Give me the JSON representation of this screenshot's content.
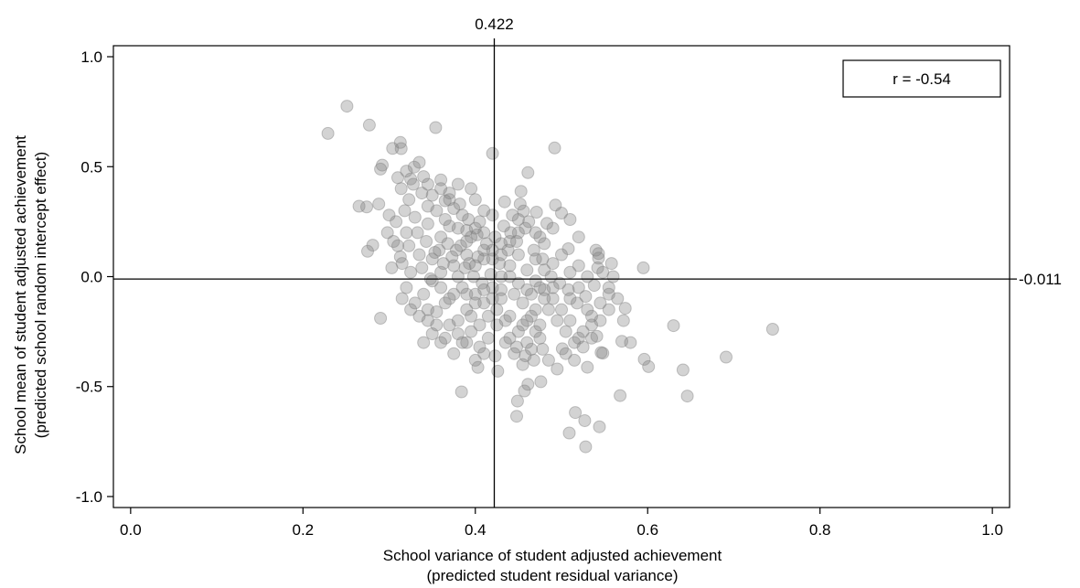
{
  "chart_data": {
    "type": "scatter",
    "title": "",
    "xlabel": [
      "School variance of student adjusted achievement",
      "(predicted student residual variance)"
    ],
    "ylabel": [
      "School mean of student adjusted achievement",
      "(predicted school random intercept effect)"
    ],
    "xlim": [
      -0.02,
      1.02
    ],
    "ylim": [
      -1.05,
      1.05
    ],
    "xticks": [
      "0.0",
      "0.2",
      "0.4",
      "0.6",
      "0.8",
      "1.0"
    ],
    "yticks": [
      "1.0",
      "0.5",
      "0.0",
      "-0.5",
      "-1.0"
    ],
    "grid": false,
    "reference_lines": {
      "x_value": 0.422,
      "x_label": "0.422",
      "y_value": -0.011,
      "y_label": "-0.011"
    },
    "legend": {
      "text": "r = -0.54",
      "position": "top-right"
    },
    "point_color": "#808080",
    "points": [
      [
        0.251,
        0.775
      ],
      [
        0.229,
        0.651
      ],
      [
        0.277,
        0.689
      ],
      [
        0.354,
        0.678
      ],
      [
        0.313,
        0.61
      ],
      [
        0.314,
        0.582
      ],
      [
        0.304,
        0.583
      ],
      [
        0.42,
        0.56
      ],
      [
        0.492,
        0.585
      ],
      [
        0.292,
        0.507
      ],
      [
        0.29,
        0.489
      ],
      [
        0.461,
        0.473
      ],
      [
        0.329,
        0.498
      ],
      [
        0.325,
        0.444
      ],
      [
        0.34,
        0.455
      ],
      [
        0.274,
        0.317
      ],
      [
        0.265,
        0.32
      ],
      [
        0.281,
        0.143
      ],
      [
        0.275,
        0.115
      ],
      [
        0.29,
        -0.189
      ],
      [
        0.745,
        -0.239
      ],
      [
        0.691,
        -0.366
      ],
      [
        0.63,
        -0.223
      ],
      [
        0.641,
        -0.424
      ],
      [
        0.646,
        -0.543
      ],
      [
        0.601,
        -0.409
      ],
      [
        0.596,
        -0.376
      ],
      [
        0.595,
        0.04
      ],
      [
        0.574,
        -0.144
      ],
      [
        0.57,
        -0.294
      ],
      [
        0.568,
        -0.541
      ],
      [
        0.544,
        -0.683
      ],
      [
        0.528,
        -0.774
      ],
      [
        0.516,
        -0.618
      ],
      [
        0.509,
        -0.711
      ],
      [
        0.527,
        -0.655
      ],
      [
        0.448,
        -0.635
      ],
      [
        0.449,
        -0.566
      ],
      [
        0.426,
        -0.43
      ],
      [
        0.384,
        -0.524
      ],
      [
        0.543,
        0.105
      ],
      [
        0.543,
        0.084
      ],
      [
        0.542,
        0.04
      ],
      [
        0.508,
        0.127
      ],
      [
        0.456,
        0.298
      ],
      [
        0.453,
        0.388
      ],
      [
        0.493,
        0.325
      ],
      [
        0.5,
        0.289
      ],
      [
        0.483,
        0.242
      ],
      [
        0.471,
        0.293
      ],
      [
        0.546,
        -0.345
      ],
      [
        0.541,
        -0.271
      ],
      [
        0.548,
        -0.348
      ],
      [
        0.53,
        -0.412
      ],
      [
        0.501,
        -0.328
      ],
      [
        0.476,
        -0.478
      ],
      [
        0.457,
        -0.52
      ],
      [
        0.461,
        -0.49
      ],
      [
        0.423,
        -0.361
      ],
      [
        0.403,
        -0.413
      ],
      [
        0.314,
        0.4
      ],
      [
        0.323,
        0.35
      ],
      [
        0.35,
        0.37
      ],
      [
        0.365,
        0.345
      ],
      [
        0.38,
        0.42
      ],
      [
        0.4,
        0.35
      ],
      [
        0.395,
        0.4
      ],
      [
        0.41,
        0.3
      ],
      [
        0.42,
        0.28
      ],
      [
        0.434,
        0.34
      ],
      [
        0.441,
        0.2
      ],
      [
        0.45,
        0.26
      ],
      [
        0.47,
        0.2
      ],
      [
        0.48,
        0.15
      ],
      [
        0.43,
        0.15
      ],
      [
        0.39,
        0.21
      ],
      [
        0.37,
        0.23
      ],
      [
        0.36,
        0.18
      ],
      [
        0.345,
        0.24
      ],
      [
        0.33,
        0.27
      ],
      [
        0.32,
        0.2
      ],
      [
        0.31,
        0.14
      ],
      [
        0.335,
        0.1
      ],
      [
        0.35,
        0.08
      ],
      [
        0.36,
        0.02
      ],
      [
        0.375,
        0.05
      ],
      [
        0.39,
        0.1
      ],
      [
        0.4,
        0.05
      ],
      [
        0.41,
        0.12
      ],
      [
        0.42,
        0.08
      ],
      [
        0.43,
        0.0
      ],
      [
        0.44,
        0.05
      ],
      [
        0.45,
        0.1
      ],
      [
        0.46,
        0.03
      ],
      [
        0.47,
        0.08
      ],
      [
        0.48,
        0.03
      ],
      [
        0.49,
        0.06
      ],
      [
        0.5,
        0.1
      ],
      [
        0.51,
        0.02
      ],
      [
        0.52,
        0.05
      ],
      [
        0.53,
        0.0
      ],
      [
        0.52,
        -0.05
      ],
      [
        0.51,
        -0.1
      ],
      [
        0.5,
        -0.15
      ],
      [
        0.49,
        -0.05
      ],
      [
        0.48,
        -0.1
      ],
      [
        0.47,
        -0.15
      ],
      [
        0.46,
        -0.2
      ],
      [
        0.45,
        -0.25
      ],
      [
        0.44,
        -0.18
      ],
      [
        0.43,
        -0.1
      ],
      [
        0.42,
        -0.05
      ],
      [
        0.41,
        -0.12
      ],
      [
        0.4,
        -0.08
      ],
      [
        0.39,
        -0.15
      ],
      [
        0.38,
        -0.2
      ],
      [
        0.37,
        -0.1
      ],
      [
        0.36,
        -0.05
      ],
      [
        0.35,
        -0.02
      ],
      [
        0.34,
        -0.08
      ],
      [
        0.33,
        -0.12
      ],
      [
        0.32,
        -0.05
      ],
      [
        0.345,
        -0.15
      ],
      [
        0.355,
        -0.22
      ],
      [
        0.365,
        -0.28
      ],
      [
        0.375,
        -0.35
      ],
      [
        0.385,
        -0.3
      ],
      [
        0.395,
        -0.25
      ],
      [
        0.405,
        -0.32
      ],
      [
        0.415,
        -0.28
      ],
      [
        0.425,
        -0.22
      ],
      [
        0.435,
        -0.3
      ],
      [
        0.445,
        -0.35
      ],
      [
        0.455,
        -0.4
      ],
      [
        0.465,
        -0.33
      ],
      [
        0.475,
        -0.28
      ],
      [
        0.485,
        -0.38
      ],
      [
        0.495,
        -0.42
      ],
      [
        0.505,
        -0.35
      ],
      [
        0.515,
        -0.3
      ],
      [
        0.525,
        -0.25
      ],
      [
        0.535,
        -0.18
      ],
      [
        0.545,
        -0.12
      ],
      [
        0.555,
        -0.05
      ],
      [
        0.56,
        0.0
      ],
      [
        0.555,
        -0.08
      ],
      [
        0.53,
        -0.15
      ],
      [
        0.535,
        -0.22
      ],
      [
        0.52,
        -0.28
      ],
      [
        0.51,
        -0.2
      ],
      [
        0.46,
        -0.3
      ],
      [
        0.47,
        -0.25
      ],
      [
        0.455,
        -0.22
      ],
      [
        0.465,
        -0.18
      ],
      [
        0.475,
        -0.22
      ],
      [
        0.44,
        -0.28
      ],
      [
        0.448,
        -0.32
      ],
      [
        0.458,
        -0.36
      ],
      [
        0.468,
        -0.38
      ],
      [
        0.478,
        -0.33
      ],
      [
        0.41,
        0.2
      ],
      [
        0.405,
        0.25
      ],
      [
        0.395,
        0.18
      ],
      [
        0.385,
        0.28
      ],
      [
        0.375,
        0.31
      ],
      [
        0.365,
        0.26
      ],
      [
        0.355,
        0.3
      ],
      [
        0.345,
        0.32
      ],
      [
        0.338,
        0.38
      ],
      [
        0.328,
        0.42
      ],
      [
        0.318,
        0.3
      ],
      [
        0.308,
        0.25
      ],
      [
        0.305,
        0.16
      ],
      [
        0.315,
        0.06
      ],
      [
        0.325,
        0.02
      ],
      [
        0.338,
        0.04
      ],
      [
        0.348,
        -0.01
      ],
      [
        0.358,
        0.12
      ],
      [
        0.368,
        0.15
      ],
      [
        0.378,
        0.12
      ],
      [
        0.388,
        0.04
      ],
      [
        0.398,
        0.0
      ],
      [
        0.408,
        -0.03
      ],
      [
        0.418,
        0.01
      ],
      [
        0.428,
        0.06
      ],
      [
        0.438,
        0.12
      ],
      [
        0.448,
        0.16
      ],
      [
        0.458,
        0.22
      ],
      [
        0.468,
        0.12
      ],
      [
        0.478,
        0.08
      ],
      [
        0.488,
        0.0
      ],
      [
        0.498,
        -0.03
      ],
      [
        0.508,
        -0.06
      ],
      [
        0.518,
        -0.12
      ],
      [
        0.528,
        -0.09
      ],
      [
        0.538,
        -0.04
      ],
      [
        0.548,
        0.02
      ],
      [
        0.558,
        0.06
      ],
      [
        0.54,
        0.12
      ],
      [
        0.52,
        0.18
      ],
      [
        0.51,
        0.26
      ],
      [
        0.49,
        0.22
      ],
      [
        0.475,
        0.18
      ],
      [
        0.462,
        0.25
      ],
      [
        0.452,
        0.33
      ],
      [
        0.443,
        0.28
      ],
      [
        0.433,
        0.23
      ],
      [
        0.423,
        0.18
      ],
      [
        0.413,
        0.15
      ],
      [
        0.403,
        0.09
      ],
      [
        0.393,
        0.06
      ],
      [
        0.383,
        0.14
      ],
      [
        0.373,
        0.09
      ],
      [
        0.363,
        0.06
      ],
      [
        0.353,
        0.11
      ],
      [
        0.343,
        0.16
      ],
      [
        0.333,
        0.2
      ],
      [
        0.323,
        0.14
      ],
      [
        0.313,
        0.09
      ],
      [
        0.303,
        0.04
      ],
      [
        0.298,
        0.2
      ],
      [
        0.288,
        0.33
      ],
      [
        0.3,
        0.28
      ],
      [
        0.31,
        0.45
      ],
      [
        0.32,
        0.48
      ],
      [
        0.335,
        0.52
      ],
      [
        0.345,
        0.42
      ],
      [
        0.36,
        0.44
      ],
      [
        0.37,
        0.38
      ],
      [
        0.382,
        0.33
      ],
      [
        0.392,
        0.26
      ],
      [
        0.402,
        0.19
      ],
      [
        0.385,
        -0.05
      ],
      [
        0.375,
        -0.08
      ],
      [
        0.365,
        -0.12
      ],
      [
        0.355,
        -0.16
      ],
      [
        0.345,
        -0.2
      ],
      [
        0.335,
        -0.18
      ],
      [
        0.325,
        -0.15
      ],
      [
        0.315,
        -0.1
      ],
      [
        0.395,
        -0.18
      ],
      [
        0.405,
        -0.22
      ],
      [
        0.415,
        -0.18
      ],
      [
        0.425,
        -0.15
      ],
      [
        0.435,
        -0.2
      ],
      [
        0.445,
        -0.08
      ],
      [
        0.455,
        -0.12
      ],
      [
        0.465,
        -0.08
      ],
      [
        0.475,
        -0.05
      ],
      [
        0.485,
        -0.15
      ],
      [
        0.495,
        -0.2
      ],
      [
        0.505,
        -0.25
      ],
      [
        0.515,
        -0.38
      ],
      [
        0.525,
        -0.32
      ],
      [
        0.535,
        -0.28
      ],
      [
        0.545,
        -0.2
      ],
      [
        0.555,
        -0.15
      ],
      [
        0.565,
        -0.1
      ],
      [
        0.572,
        -0.2
      ],
      [
        0.58,
        -0.3
      ],
      [
        0.4,
        -0.38
      ],
      [
        0.41,
        -0.35
      ],
      [
        0.39,
        -0.3
      ],
      [
        0.38,
        -0.26
      ],
      [
        0.37,
        -0.22
      ],
      [
        0.36,
        -0.3
      ],
      [
        0.35,
        -0.26
      ],
      [
        0.34,
        -0.3
      ],
      [
        0.38,
        0.0
      ],
      [
        0.39,
        -0.08
      ],
      [
        0.4,
        -0.12
      ],
      [
        0.41,
        -0.06
      ],
      [
        0.42,
        -0.1
      ],
      [
        0.43,
        -0.06
      ],
      [
        0.44,
        0.0
      ],
      [
        0.45,
        -0.03
      ],
      [
        0.46,
        -0.06
      ],
      [
        0.47,
        -0.02
      ],
      [
        0.48,
        -0.06
      ],
      [
        0.49,
        -0.1
      ],
      [
        0.36,
        0.4
      ],
      [
        0.37,
        0.35
      ],
      [
        0.38,
        0.22
      ],
      [
        0.39,
        0.16
      ],
      [
        0.4,
        0.22
      ],
      [
        0.41,
        0.08
      ],
      [
        0.42,
        0.12
      ],
      [
        0.43,
        0.1
      ],
      [
        0.44,
        0.16
      ],
      [
        0.45,
        0.2
      ]
    ]
  }
}
